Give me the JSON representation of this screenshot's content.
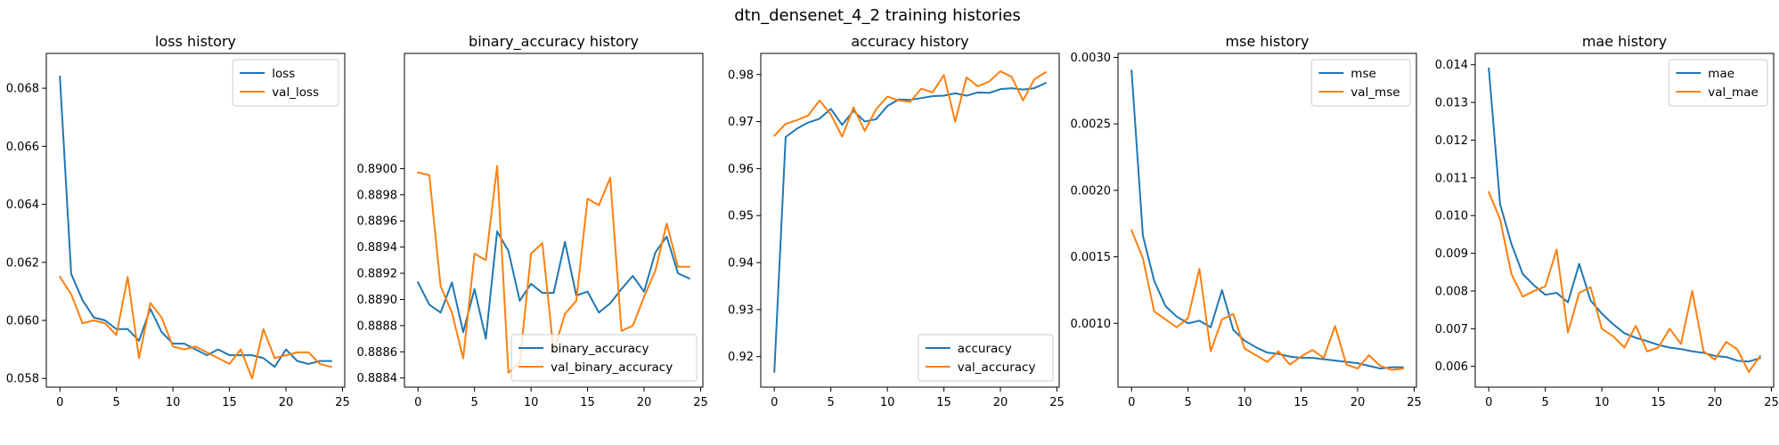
{
  "suptitle": "dtn_densenet_4_2 training histories",
  "colors": {
    "train": "#1f77b4",
    "val": "#ff7f0e"
  },
  "chart_data": [
    {
      "type": "line",
      "title": "loss history",
      "x": [
        0,
        1,
        2,
        3,
        4,
        5,
        6,
        7,
        8,
        9,
        10,
        11,
        12,
        13,
        14,
        15,
        16,
        17,
        18,
        19,
        20,
        21,
        22,
        23,
        24
      ],
      "xlim": [
        -1.2,
        25.2
      ],
      "xticks": [
        0,
        5,
        10,
        15,
        20,
        25
      ],
      "ylim": [
        0.0577,
        0.0692
      ],
      "yticks": [
        0.058,
        0.06,
        0.062,
        0.064,
        0.066,
        0.068
      ],
      "ytick_labels": [
        "0.058",
        "0.060",
        "0.062",
        "0.064",
        "0.066",
        "0.068"
      ],
      "legend_loc": "upper right",
      "series": [
        {
          "name": "loss",
          "color": "#1f77b4",
          "values": [
            0.0684,
            0.0616,
            0.0607,
            0.0601,
            0.06,
            0.0597,
            0.0597,
            0.0593,
            0.0604,
            0.0596,
            0.0592,
            0.0592,
            0.059,
            0.0588,
            0.059,
            0.0588,
            0.0588,
            0.0588,
            0.0587,
            0.0584,
            0.059,
            0.0586,
            0.0585,
            0.0586,
            0.0586
          ]
        },
        {
          "name": "val_loss",
          "color": "#ff7f0e",
          "values": [
            0.0615,
            0.0609,
            0.0599,
            0.06,
            0.0599,
            0.0595,
            0.0615,
            0.0587,
            0.0606,
            0.0601,
            0.0591,
            0.059,
            0.0591,
            0.0589,
            0.0587,
            0.0585,
            0.059,
            0.058,
            0.0597,
            0.0587,
            0.0588,
            0.0589,
            0.0589,
            0.0585,
            0.0584
          ]
        }
      ]
    },
    {
      "type": "line",
      "title": "binary_accuracy history",
      "x": [
        0,
        1,
        2,
        3,
        4,
        5,
        6,
        7,
        8,
        9,
        10,
        11,
        12,
        13,
        14,
        15,
        16,
        17,
        18,
        19,
        20,
        21,
        22,
        23,
        24
      ],
      "xlim": [
        -1.2,
        25.2
      ],
      "xticks": [
        0,
        5,
        10,
        15,
        20,
        25
      ],
      "ylim": [
        0.88833,
        0.89088
      ],
      "yticks": [
        0.8884,
        0.8886,
        0.8888,
        0.889,
        0.8892,
        0.8894,
        0.8896,
        0.8898,
        0.89
      ],
      "ytick_labels": [
        "0.8884",
        "0.8886",
        "0.8888",
        "0.8890",
        "0.8892",
        "0.8894",
        "0.8896",
        "0.8898",
        "0.8900"
      ],
      "legend_loc": "lower right",
      "series": [
        {
          "name": "binary_accuracy",
          "color": "#1f77b4",
          "values": [
            0.88913,
            0.88896,
            0.8889,
            0.88913,
            0.88875,
            0.88908,
            0.8887,
            0.88952,
            0.88937,
            0.88899,
            0.88912,
            0.88905,
            0.88905,
            0.88944,
            0.88903,
            0.88906,
            0.8889,
            0.88897,
            0.88908,
            0.88918,
            0.88906,
            0.88936,
            0.88948,
            0.8892,
            0.88916
          ]
        },
        {
          "name": "val_binary_accuracy",
          "color": "#ff7f0e",
          "values": [
            0.88997,
            0.88995,
            0.8891,
            0.8889,
            0.88855,
            0.88935,
            0.8893,
            0.89002,
            0.88844,
            0.88852,
            0.88935,
            0.88943,
            0.8886,
            0.88889,
            0.88899,
            0.88977,
            0.88972,
            0.88993,
            0.88876,
            0.8888,
            0.88902,
            0.88922,
            0.88958,
            0.88925,
            0.88925
          ]
        }
      ]
    },
    {
      "type": "line",
      "title": "accuracy history",
      "x": [
        0,
        1,
        2,
        3,
        4,
        5,
        6,
        7,
        8,
        9,
        10,
        11,
        12,
        13,
        14,
        15,
        16,
        17,
        18,
        19,
        20,
        21,
        22,
        23,
        24
      ],
      "xlim": [
        -1.2,
        25.2
      ],
      "xticks": [
        0,
        5,
        10,
        15,
        20,
        25
      ],
      "ylim": [
        0.9135,
        0.9845
      ],
      "yticks": [
        0.92,
        0.93,
        0.94,
        0.95,
        0.96,
        0.97,
        0.98
      ],
      "ytick_labels": [
        "0.92",
        "0.93",
        "0.94",
        "0.95",
        "0.96",
        "0.97",
        "0.98"
      ],
      "legend_loc": "lower right",
      "series": [
        {
          "name": "accuracy",
          "color": "#1f77b4",
          "values": [
            0.9168,
            0.9667,
            0.9685,
            0.9698,
            0.9706,
            0.9727,
            0.9693,
            0.9723,
            0.97,
            0.9705,
            0.9733,
            0.9747,
            0.9746,
            0.975,
            0.9754,
            0.9755,
            0.976,
            0.9755,
            0.9762,
            0.9761,
            0.9769,
            0.9771,
            0.9768,
            0.9771,
            0.9782
          ]
        },
        {
          "name": "val_accuracy",
          "color": "#ff7f0e",
          "values": [
            0.967,
            0.9695,
            0.9703,
            0.9713,
            0.9745,
            0.9715,
            0.9668,
            0.973,
            0.968,
            0.9726,
            0.9753,
            0.9745,
            0.9742,
            0.977,
            0.9762,
            0.9799,
            0.97,
            0.9794,
            0.9775,
            0.9785,
            0.9807,
            0.9795,
            0.9745,
            0.979,
            0.9805
          ]
        }
      ]
    },
    {
      "type": "line",
      "title": "mse history",
      "x": [
        0,
        1,
        2,
        3,
        4,
        5,
        6,
        7,
        8,
        9,
        10,
        11,
        12,
        13,
        14,
        15,
        16,
        17,
        18,
        19,
        20,
        21,
        22,
        23,
        24
      ],
      "xlim": [
        -1.2,
        25.2
      ],
      "xticks": [
        0,
        5,
        10,
        15,
        20,
        25
      ],
      "ylim": [
        0.00052,
        0.00303
      ],
      "yticks": [
        0.001,
        0.0015,
        0.002,
        0.0025,
        0.003
      ],
      "ytick_labels": [
        "0.0010",
        "0.0015",
        "0.0020",
        "0.0025",
        "0.0030"
      ],
      "legend_loc": "upper right",
      "series": [
        {
          "name": "mse",
          "color": "#1f77b4",
          "values": [
            0.0029,
            0.00166,
            0.00132,
            0.00113,
            0.00105,
            0.001,
            0.00102,
            0.00097,
            0.00125,
            0.00095,
            0.00087,
            0.00082,
            0.00078,
            0.00077,
            0.00075,
            0.00074,
            0.00074,
            0.00073,
            0.00072,
            0.00071,
            0.0007,
            0.00068,
            0.00066,
            0.00067,
            0.00067
          ]
        },
        {
          "name": "val_mse",
          "color": "#ff7f0e",
          "values": [
            0.0017,
            0.00149,
            0.00109,
            0.00103,
            0.00097,
            0.00104,
            0.00141,
            0.00079,
            0.00103,
            0.00107,
            0.00081,
            0.00076,
            0.00071,
            0.00079,
            0.00069,
            0.00075,
            0.0008,
            0.00074,
            0.00098,
            0.00069,
            0.00066,
            0.00076,
            0.00068,
            0.00065,
            0.00066
          ]
        }
      ]
    },
    {
      "type": "line",
      "title": "mae history",
      "x": [
        0,
        1,
        2,
        3,
        4,
        5,
        6,
        7,
        8,
        9,
        10,
        11,
        12,
        13,
        14,
        15,
        16,
        17,
        18,
        19,
        20,
        21,
        22,
        23,
        24
      ],
      "xlim": [
        -1.2,
        25.2
      ],
      "xticks": [
        0,
        5,
        10,
        15,
        20,
        25
      ],
      "ylim": [
        0.00545,
        0.0143
      ],
      "yticks": [
        0.006,
        0.007,
        0.008,
        0.009,
        0.01,
        0.011,
        0.012,
        0.013,
        0.014
      ],
      "ytick_labels": [
        "0.006",
        "0.007",
        "0.008",
        "0.009",
        "0.010",
        "0.011",
        "0.012",
        "0.013",
        "0.014"
      ],
      "legend_loc": "upper right",
      "series": [
        {
          "name": "mae",
          "color": "#1f77b4",
          "values": [
            0.0139,
            0.0103,
            0.00925,
            0.00845,
            0.00815,
            0.0079,
            0.00795,
            0.0077,
            0.00872,
            0.00775,
            0.0074,
            0.00712,
            0.00688,
            0.00676,
            0.00667,
            0.00657,
            0.0065,
            0.00646,
            0.0064,
            0.00636,
            0.00628,
            0.00625,
            0.00615,
            0.00613,
            0.00622
          ]
        },
        {
          "name": "val_mae",
          "color": "#ff7f0e",
          "values": [
            0.01062,
            0.0099,
            0.00845,
            0.00785,
            0.008,
            0.00812,
            0.0091,
            0.0069,
            0.00795,
            0.0081,
            0.007,
            0.0068,
            0.0065,
            0.00708,
            0.0064,
            0.0065,
            0.007,
            0.0066,
            0.008,
            0.0064,
            0.00618,
            0.00665,
            0.00645,
            0.00585,
            0.00628
          ]
        }
      ]
    }
  ]
}
